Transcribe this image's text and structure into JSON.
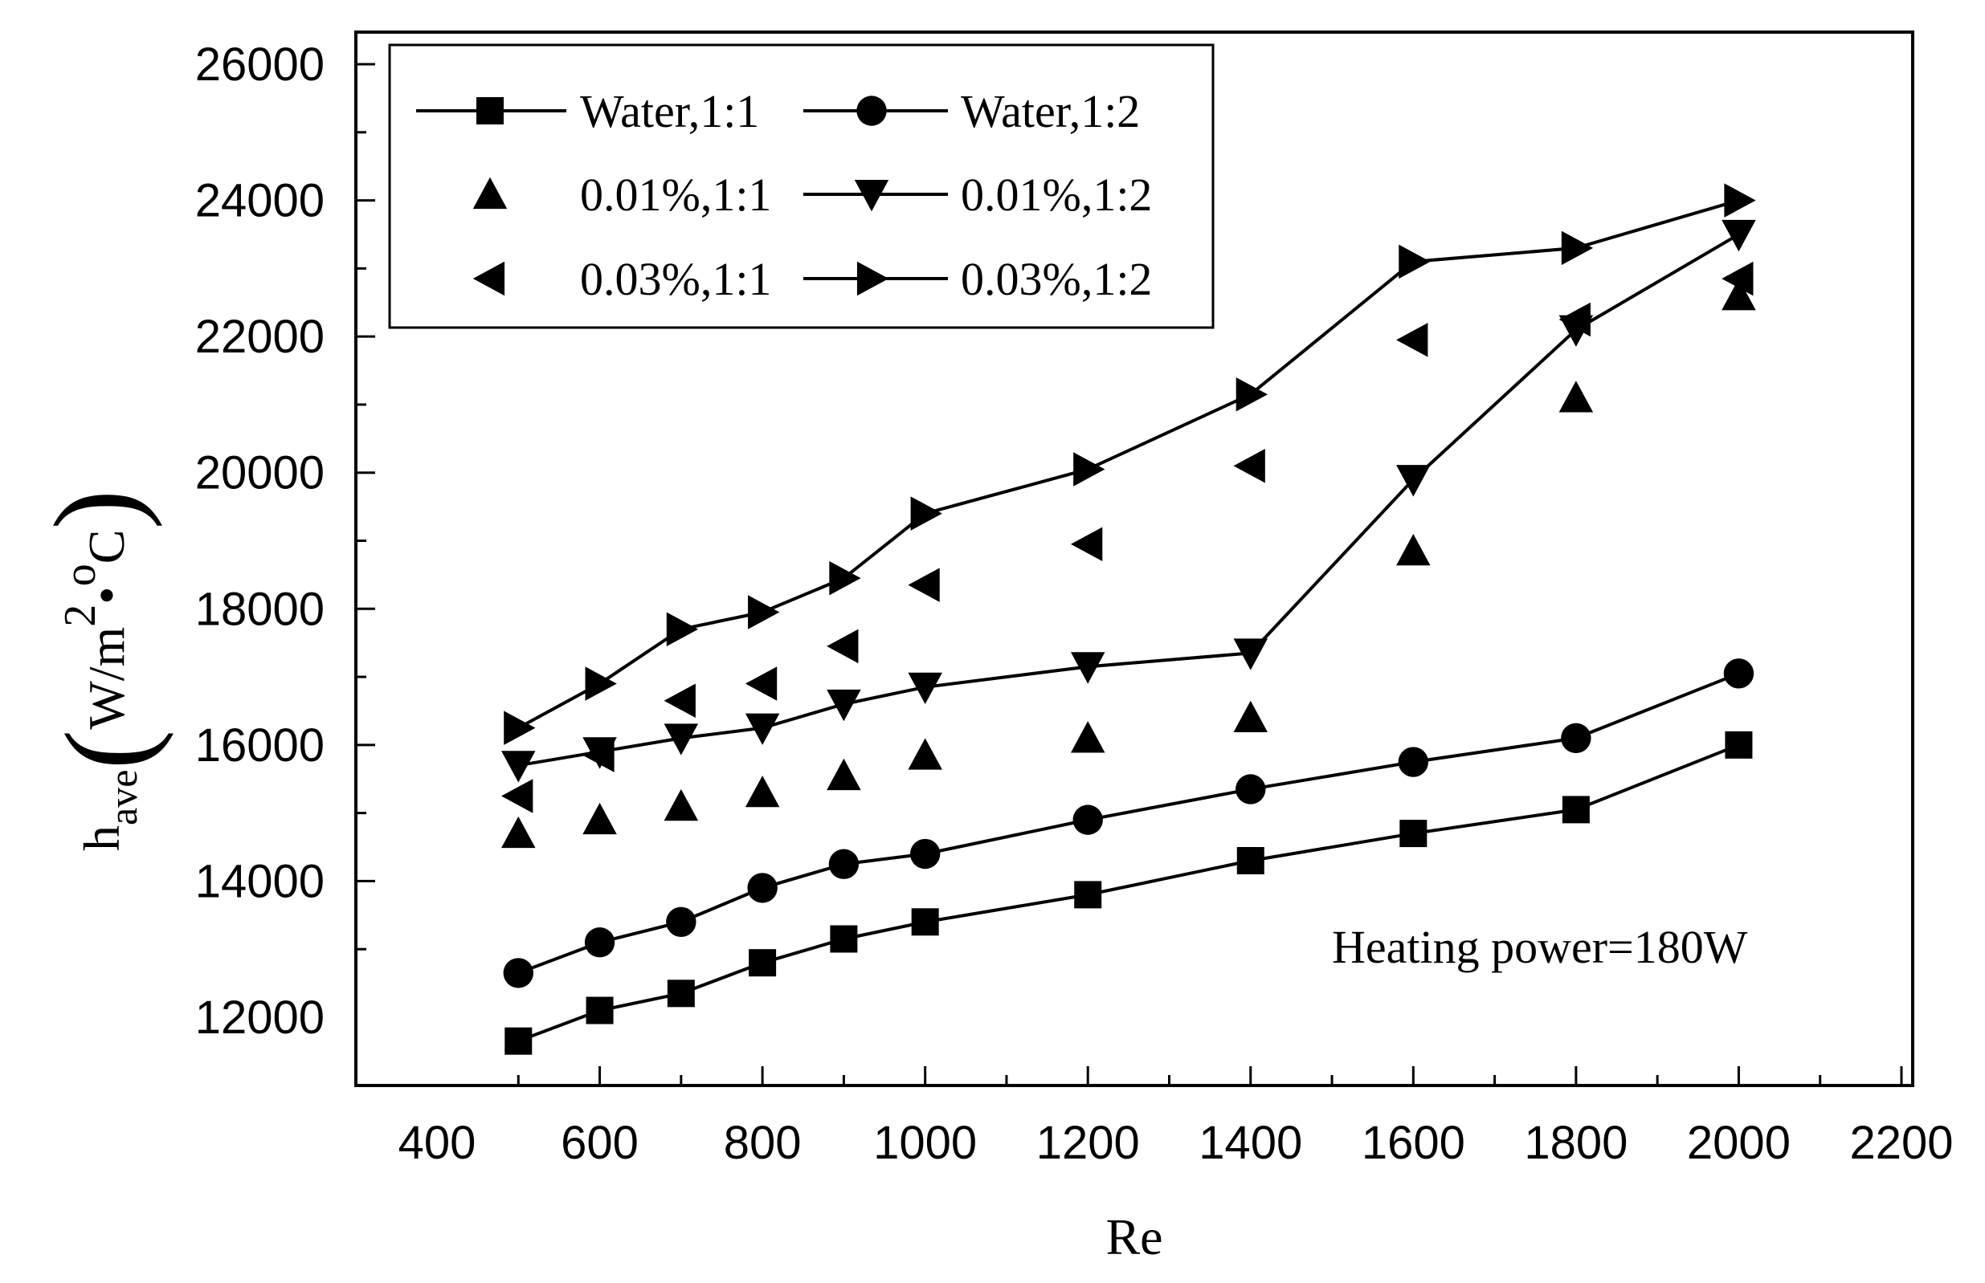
{
  "chart_data": {
    "type": "line",
    "title": "",
    "xlabel": "Re",
    "ylabel": {
      "main": "h",
      "sub": "ave",
      "units_prefix": "W/m",
      "units_sup": "2",
      "units_bullet": "•",
      "units_sup2": "o",
      "units_suffix": "C"
    },
    "xlim": [
      300,
      2200
    ],
    "ylim": [
      11000,
      26500
    ],
    "xticks": [
      400,
      600,
      800,
      1000,
      1200,
      1400,
      1600,
      1800,
      2000,
      2200
    ],
    "yticks": [
      12000,
      14000,
      16000,
      18000,
      20000,
      22000,
      24000,
      26000
    ],
    "annotation": "Heating power=180W",
    "legend_position": "top-left",
    "series": [
      {
        "name": "Water,1:1",
        "marker": "square",
        "line": true,
        "x": [
          500,
          600,
          700,
          800,
          900,
          1000,
          1200,
          1400,
          1600,
          1800,
          2000
        ],
        "y": [
          11650,
          12100,
          12350,
          12800,
          13150,
          13400,
          13800,
          14300,
          14700,
          15050,
          16000
        ]
      },
      {
        "name": "Water,1:2",
        "marker": "circle",
        "line": true,
        "x": [
          500,
          600,
          700,
          800,
          900,
          1000,
          1200,
          1400,
          1600,
          1800,
          2000
        ],
        "y": [
          12650,
          13100,
          13400,
          13900,
          14250,
          14400,
          14900,
          15350,
          15750,
          16100,
          17050
        ]
      },
      {
        "name": "0.01%,1:1",
        "marker": "triangle-up",
        "line": false,
        "x": [
          500,
          600,
          700,
          800,
          900,
          1000,
          1200,
          1400,
          1600,
          1800,
          2000
        ],
        "y": [
          14700,
          14900,
          15100,
          15300,
          15550,
          15850,
          16100,
          16400,
          18850,
          21100,
          22600
        ]
      },
      {
        "name": "0.01%,1:2",
        "marker": "triangle-down",
        "line": true,
        "x": [
          500,
          600,
          700,
          800,
          900,
          1000,
          1200,
          1400,
          1600,
          1800,
          2000
        ],
        "y": [
          15700,
          15900,
          16100,
          16250,
          16600,
          16850,
          17150,
          17350,
          19900,
          22100,
          23500
        ]
      },
      {
        "name": "0.03%,1:1",
        "marker": "triangle-left",
        "line": false,
        "x": [
          500,
          600,
          700,
          800,
          900,
          1000,
          1200,
          1400,
          1600,
          1800,
          2000
        ],
        "y": [
          15250,
          15850,
          16650,
          16900,
          17450,
          18350,
          18950,
          20100,
          21950,
          22250,
          22850
        ]
      },
      {
        "name": "0.03%,1:2",
        "marker": "triangle-right",
        "line": true,
        "x": [
          500,
          600,
          700,
          800,
          900,
          1000,
          1200,
          1400,
          1600,
          1800,
          2000
        ],
        "y": [
          16250,
          16900,
          17700,
          17950,
          18450,
          19400,
          20050,
          21150,
          23100,
          23300,
          24000
        ]
      }
    ]
  }
}
